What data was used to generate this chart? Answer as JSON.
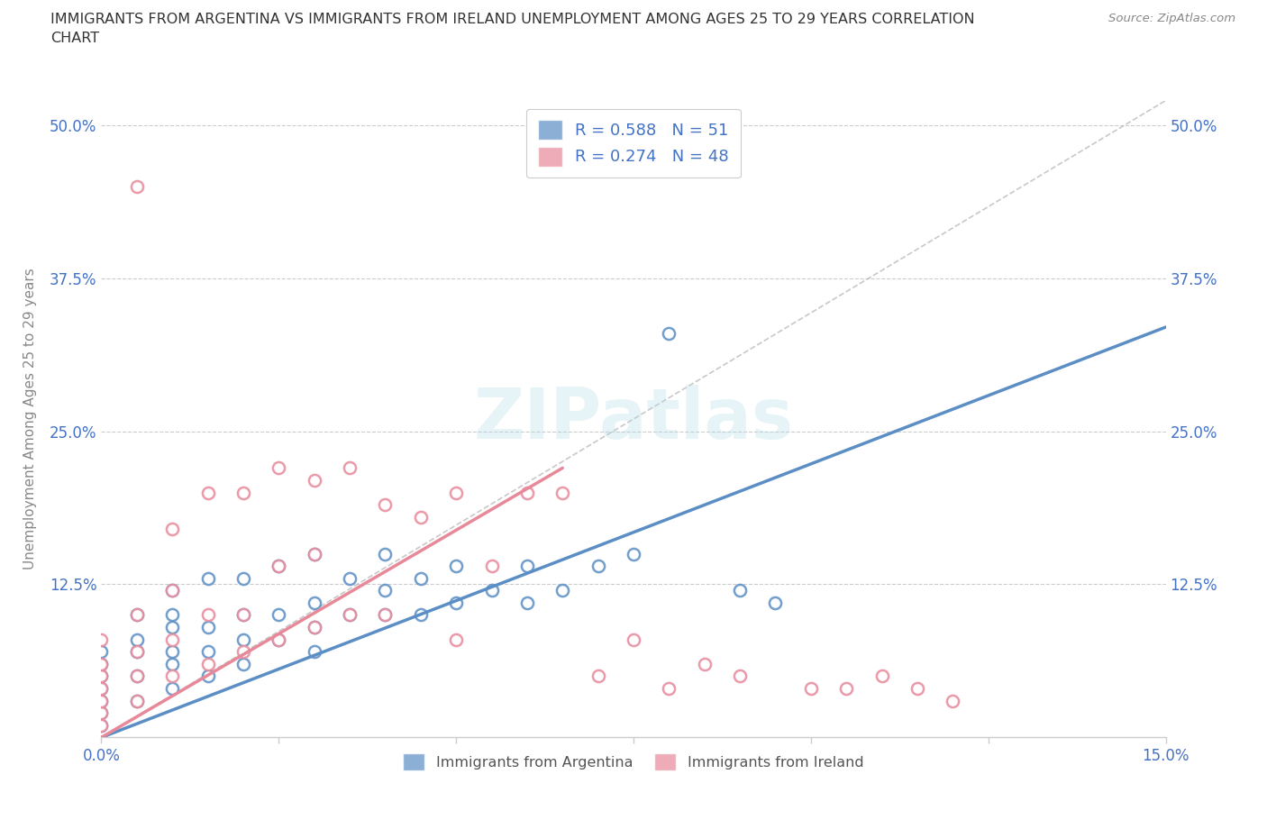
{
  "title": "IMMIGRANTS FROM ARGENTINA VS IMMIGRANTS FROM IRELAND UNEMPLOYMENT AMONG AGES 25 TO 29 YEARS CORRELATION\nCHART",
  "source_text": "Source: ZipAtlas.com",
  "ylabel": "Unemployment Among Ages 25 to 29 years",
  "xlim": [
    0.0,
    0.15
  ],
  "ylim": [
    0.0,
    0.52
  ],
  "ytick_labels": [
    "12.5%",
    "25.0%",
    "37.5%",
    "50.0%"
  ],
  "ytick_positions": [
    0.125,
    0.25,
    0.375,
    0.5
  ],
  "argentina_color": "#5B8EC5",
  "ireland_color": "#E8899A",
  "watermark": "ZIPatlas",
  "legend_r_label1": "R = 0.588   N = 51",
  "legend_r_label2": "R = 0.274   N = 48",
  "arg_line": [
    [
      0.0,
      0.0
    ],
    [
      0.15,
      0.335
    ]
  ],
  "ire_line": [
    [
      0.0,
      0.0
    ],
    [
      0.065,
      0.22
    ]
  ],
  "ref_line": [
    [
      0.0,
      0.0
    ],
    [
      0.15,
      0.52
    ]
  ],
  "argentina_scatter_x": [
    0.0,
    0.0,
    0.0,
    0.0,
    0.0,
    0.0,
    0.0,
    0.005,
    0.005,
    0.005,
    0.005,
    0.005,
    0.01,
    0.01,
    0.01,
    0.01,
    0.01,
    0.01,
    0.015,
    0.015,
    0.015,
    0.015,
    0.02,
    0.02,
    0.02,
    0.02,
    0.025,
    0.025,
    0.025,
    0.03,
    0.03,
    0.03,
    0.03,
    0.035,
    0.035,
    0.04,
    0.04,
    0.04,
    0.045,
    0.045,
    0.05,
    0.05,
    0.055,
    0.06,
    0.06,
    0.065,
    0.07,
    0.075,
    0.08,
    0.09,
    0.095
  ],
  "argentina_scatter_y": [
    0.01,
    0.02,
    0.03,
    0.04,
    0.05,
    0.06,
    0.07,
    0.03,
    0.05,
    0.07,
    0.08,
    0.1,
    0.04,
    0.06,
    0.07,
    0.09,
    0.1,
    0.12,
    0.05,
    0.07,
    0.09,
    0.13,
    0.06,
    0.08,
    0.1,
    0.13,
    0.08,
    0.1,
    0.14,
    0.07,
    0.09,
    0.11,
    0.15,
    0.1,
    0.13,
    0.1,
    0.12,
    0.15,
    0.1,
    0.13,
    0.11,
    0.14,
    0.12,
    0.11,
    0.14,
    0.12,
    0.14,
    0.15,
    0.33,
    0.12,
    0.11
  ],
  "ireland_scatter_x": [
    0.0,
    0.0,
    0.0,
    0.0,
    0.0,
    0.0,
    0.0,
    0.005,
    0.005,
    0.005,
    0.005,
    0.005,
    0.01,
    0.01,
    0.01,
    0.01,
    0.015,
    0.015,
    0.015,
    0.02,
    0.02,
    0.02,
    0.025,
    0.025,
    0.025,
    0.03,
    0.03,
    0.03,
    0.035,
    0.035,
    0.04,
    0.04,
    0.045,
    0.05,
    0.05,
    0.055,
    0.06,
    0.065,
    0.07,
    0.075,
    0.08,
    0.085,
    0.09,
    0.1,
    0.105,
    0.11,
    0.115,
    0.12
  ],
  "ireland_scatter_y": [
    0.01,
    0.02,
    0.03,
    0.04,
    0.05,
    0.06,
    0.08,
    0.03,
    0.05,
    0.07,
    0.1,
    0.45,
    0.05,
    0.08,
    0.12,
    0.17,
    0.06,
    0.1,
    0.2,
    0.07,
    0.1,
    0.2,
    0.08,
    0.14,
    0.22,
    0.09,
    0.15,
    0.21,
    0.1,
    0.22,
    0.1,
    0.19,
    0.18,
    0.08,
    0.2,
    0.14,
    0.2,
    0.2,
    0.05,
    0.08,
    0.04,
    0.06,
    0.05,
    0.04,
    0.04,
    0.05,
    0.04,
    0.03
  ]
}
